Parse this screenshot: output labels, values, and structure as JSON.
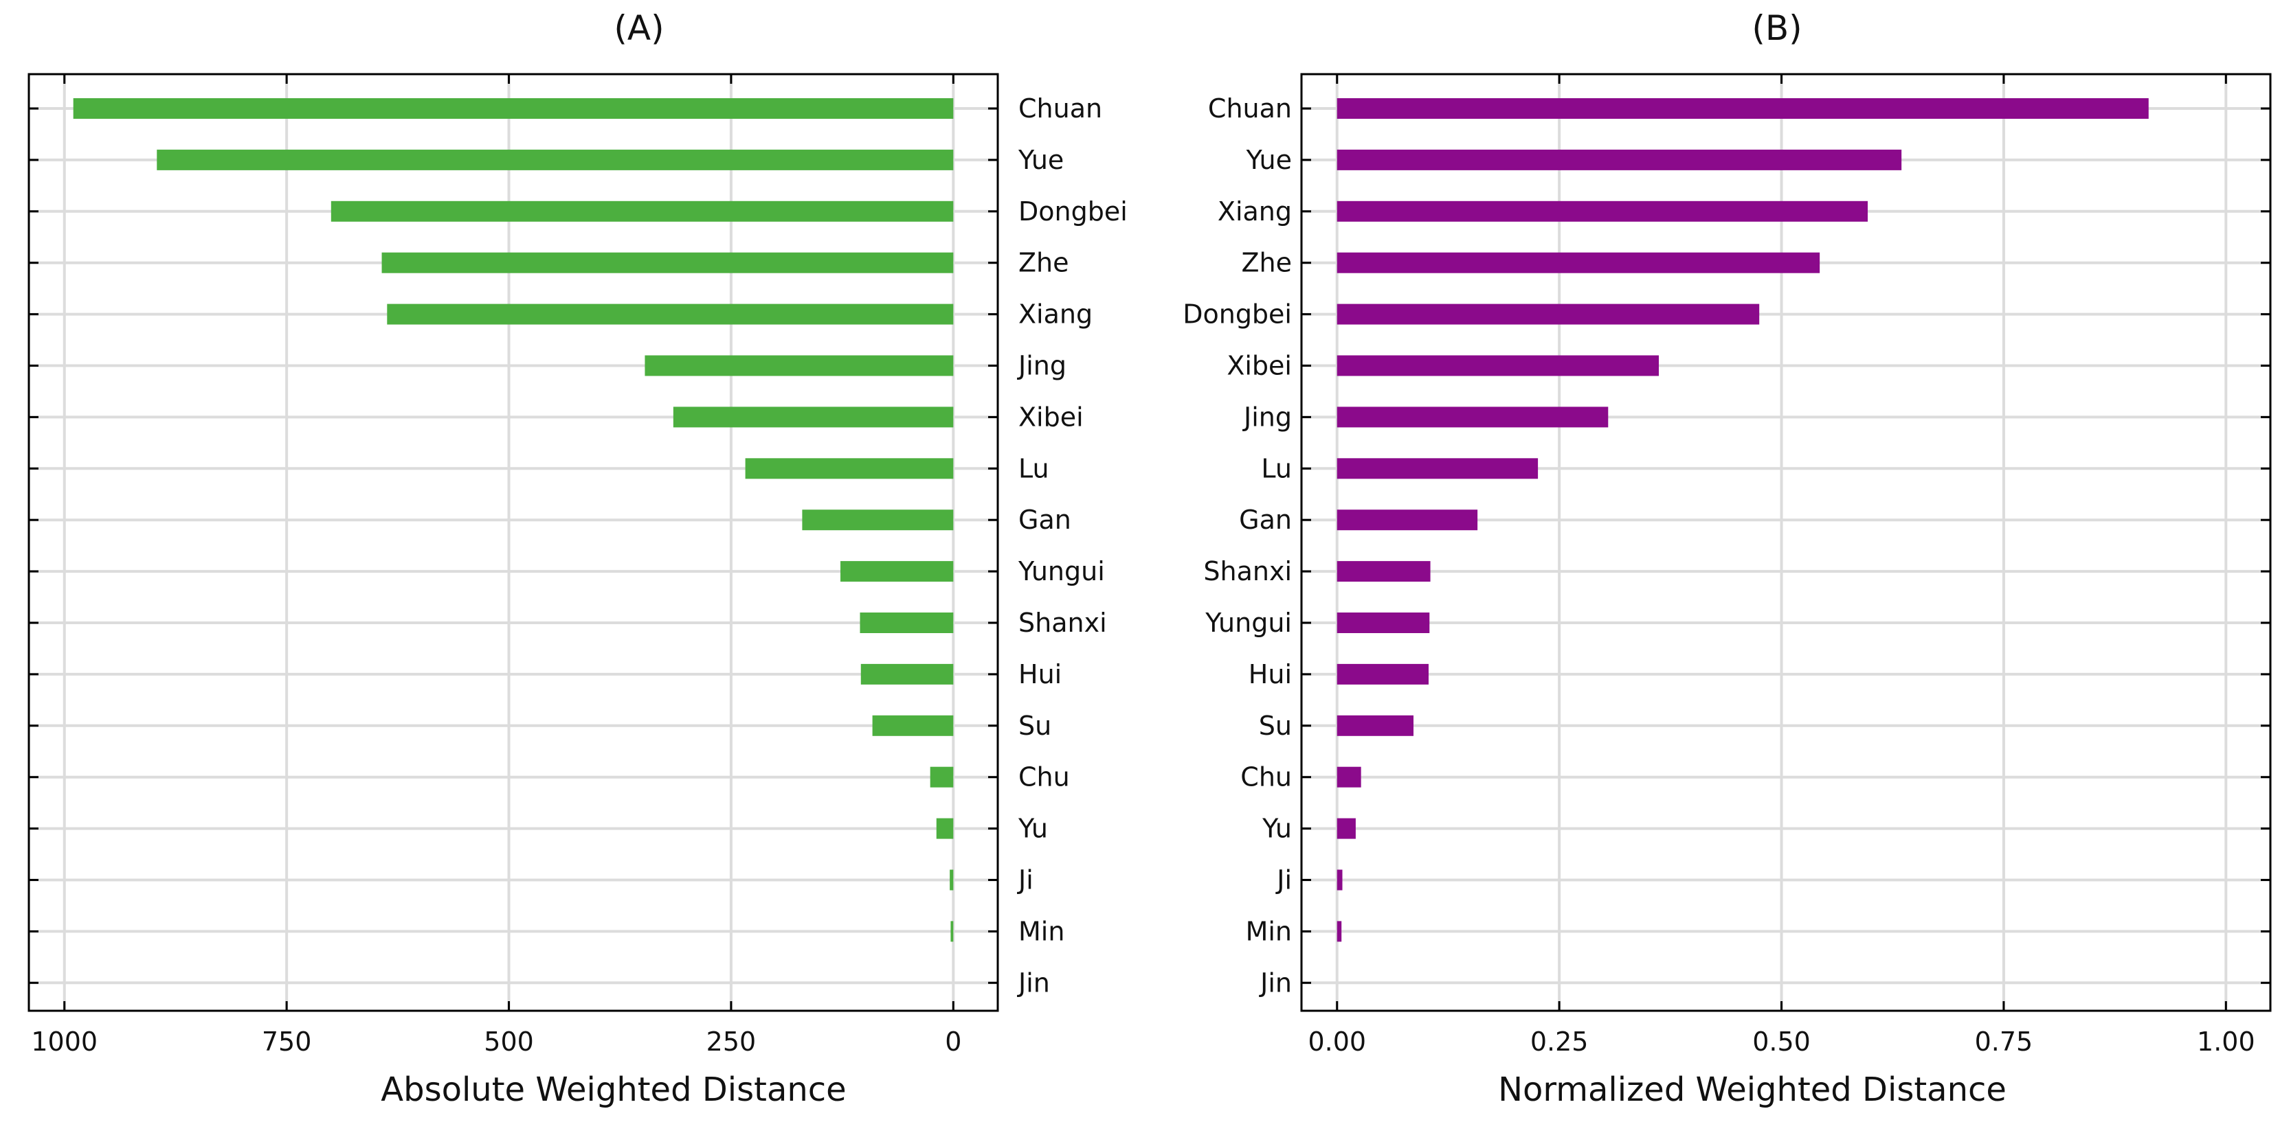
{
  "chart_data": [
    {
      "type": "bar",
      "orientation": "horizontal",
      "title": "(A)",
      "xlabel": "Absolute Weighted Distance",
      "ylabel": "",
      "xlim": [
        1040,
        -50
      ],
      "x_inverted": true,
      "xticks": [
        1000,
        750,
        500,
        250,
        0
      ],
      "xtick_labels": [
        "1000",
        "750",
        "500",
        "250",
        "0"
      ],
      "category_axis_side": "right",
      "grid": true,
      "color": "#4caf3f",
      "categories": [
        "Chuan",
        "Yue",
        "Dongbei",
        "Zhe",
        "Xiang",
        "Jing",
        "Xibei",
        "Lu",
        "Gan",
        "Yungui",
        "Shanxi",
        "Hui",
        "Su",
        "Chu",
        "Yu",
        "Ji",
        "Min",
        "Jin"
      ],
      "values": [
        990,
        896,
        700,
        643,
        637,
        347,
        315,
        234,
        170,
        127,
        105,
        104,
        91,
        26,
        19,
        4,
        3,
        0
      ]
    },
    {
      "type": "bar",
      "orientation": "horizontal",
      "title": "(B)",
      "xlabel": "Normalized Weighted Distance",
      "ylabel": "",
      "xlim": [
        -0.04,
        1.05
      ],
      "x_inverted": false,
      "xticks": [
        0,
        0.25,
        0.5,
        0.75,
        1.0
      ],
      "xtick_labels": [
        "0.00",
        "0.25",
        "0.50",
        "0.75",
        "1.00"
      ],
      "category_axis_side": "left",
      "grid": true,
      "color": "#8b0a8b",
      "categories": [
        "Chuan",
        "Yue",
        "Xiang",
        "Zhe",
        "Dongbei",
        "Xibei",
        "Jing",
        "Lu",
        "Gan",
        "Shanxi",
        "Yungui",
        "Hui",
        "Su",
        "Chu",
        "Yu",
        "Ji",
        "Min",
        "Jin"
      ],
      "values": [
        0.913,
        0.635,
        0.597,
        0.543,
        0.475,
        0.362,
        0.305,
        0.226,
        0.158,
        0.105,
        0.104,
        0.103,
        0.086,
        0.027,
        0.021,
        0.006,
        0.005,
        0.0
      ]
    }
  ]
}
